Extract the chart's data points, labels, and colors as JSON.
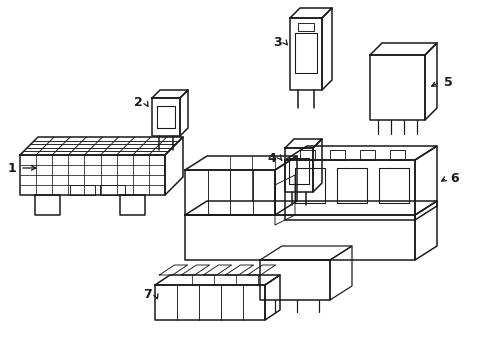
{
  "bg_color": "#ffffff",
  "line_color": "#1a1a1a",
  "line_width": 1.1,
  "figsize": [
    4.89,
    3.6
  ],
  "dpi": 100
}
